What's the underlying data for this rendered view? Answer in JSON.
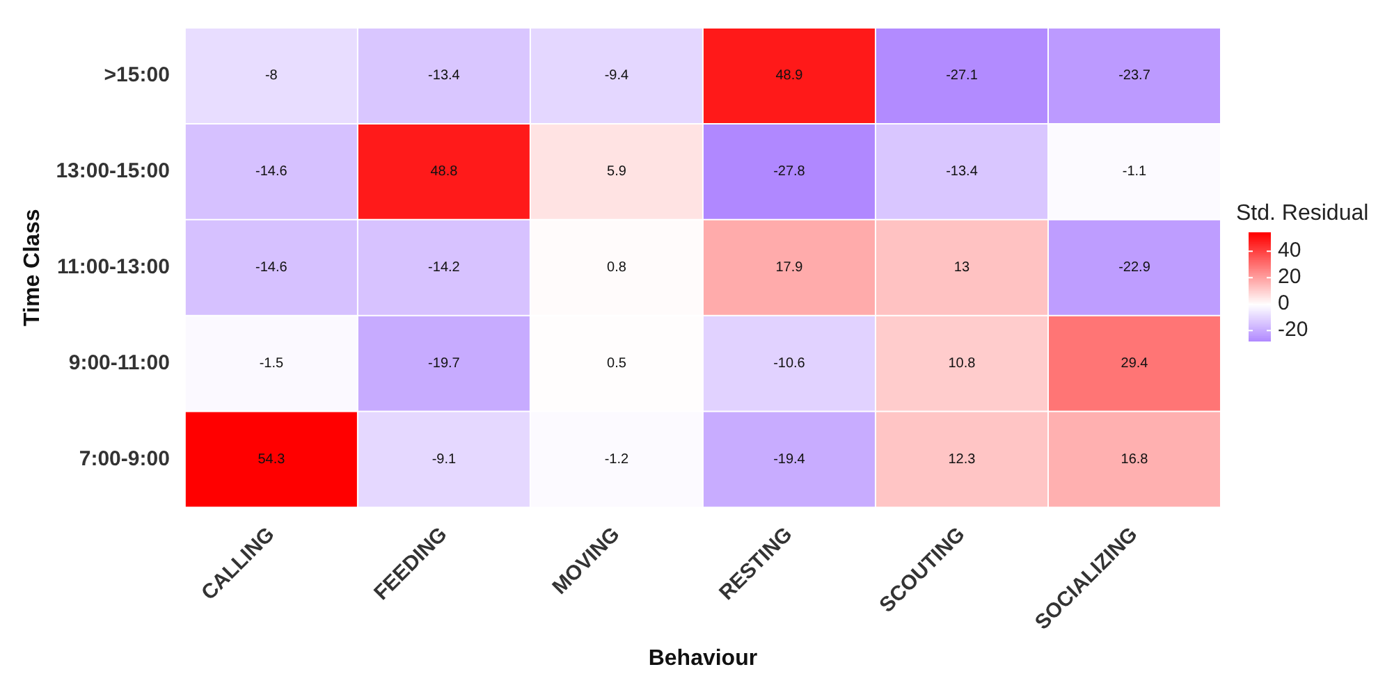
{
  "chart_data": {
    "type": "heatmap",
    "xlabel": "Behaviour",
    "ylabel": "Time Class",
    "clabel": "Std. Residual",
    "categories": [
      "CALLING",
      "FEEDING",
      "MOVING",
      "RESTING",
      "SCOUTING",
      "SOCIALIZING"
    ],
    "y_categories": [
      ">15:00",
      "13:00-15:00",
      "11:00-13:00",
      "9:00-11:00",
      "7:00-9:00"
    ],
    "cells": [
      [
        -8,
        -13.4,
        -9.4,
        48.9,
        -27.1,
        -23.7
      ],
      [
        -14.6,
        48.8,
        5.9,
        -27.8,
        -13.4,
        -1.1
      ],
      [
        -14.6,
        -14.2,
        0.8,
        17.9,
        13,
        -22.9
      ],
      [
        -1.5,
        -19.7,
        0.5,
        -10.6,
        10.8,
        29.4
      ],
      [
        54.3,
        -9.1,
        -1.2,
        -19.4,
        12.3,
        16.8
      ]
    ],
    "clim": [
      -27.8,
      54.3
    ],
    "cticks": [
      -20,
      0,
      20,
      40
    ],
    "data_labels": true
  }
}
